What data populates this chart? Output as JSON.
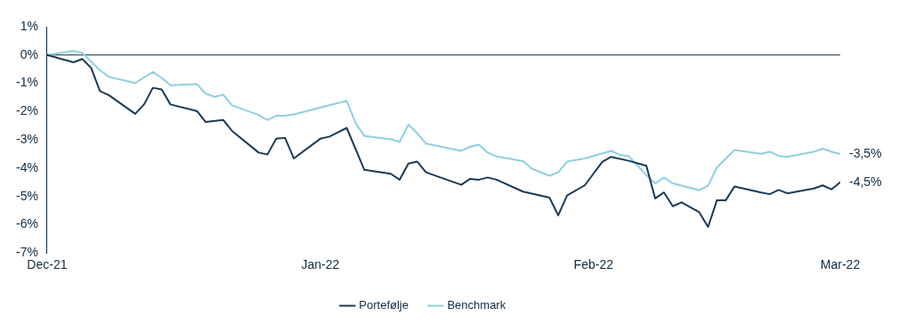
{
  "chart_data": {
    "type": "line",
    "xlim": [
      "2021-12-01",
      "2022-03-01"
    ],
    "xticks": [
      {
        "value": "2021-12-01",
        "label": "Dec-21"
      },
      {
        "value": "2022-01-01",
        "label": "Jan-22"
      },
      {
        "value": "2022-02-01",
        "label": "Feb-22"
      },
      {
        "value": "2022-03-01",
        "label": "Mar-22"
      }
    ],
    "ylim": [
      -7,
      1
    ],
    "yticks": [
      {
        "value": 1,
        "label": "1%"
      },
      {
        "value": 0,
        "label": "0%"
      },
      {
        "value": -1,
        "label": "-1%"
      },
      {
        "value": -2,
        "label": "-2%"
      },
      {
        "value": -3,
        "label": "-3%"
      },
      {
        "value": -4,
        "label": "-4%"
      },
      {
        "value": -5,
        "label": "-5%"
      },
      {
        "value": -6,
        "label": "-6%"
      },
      {
        "value": -7,
        "label": "-7%"
      }
    ],
    "series": [
      {
        "name": "Portefølje",
        "color": "#1b3a55",
        "x": [
          "2021-12-01",
          "2021-12-04",
          "2021-12-05",
          "2021-12-06",
          "2021-12-07",
          "2021-12-08",
          "2021-12-11",
          "2021-12-12",
          "2021-12-13",
          "2021-12-14",
          "2021-12-15",
          "2021-12-18",
          "2021-12-19",
          "2021-12-21",
          "2021-12-22",
          "2021-12-25",
          "2021-12-26",
          "2021-12-27",
          "2021-12-28",
          "2021-12-29",
          "2022-01-01",
          "2022-01-02",
          "2022-01-04",
          "2022-01-06",
          "2022-01-09",
          "2022-01-10",
          "2022-01-11",
          "2022-01-12",
          "2022-01-13",
          "2022-01-17",
          "2022-01-18",
          "2022-01-19",
          "2022-01-20",
          "2022-01-21",
          "2022-01-24",
          "2022-01-27",
          "2022-01-28",
          "2022-01-29",
          "2022-01-31",
          "2022-02-02",
          "2022-02-03",
          "2022-02-05",
          "2022-02-07",
          "2022-02-08",
          "2022-02-09",
          "2022-02-10",
          "2022-02-11",
          "2022-02-13",
          "2022-02-14",
          "2022-02-15",
          "2022-02-16",
          "2022-02-17",
          "2022-02-20",
          "2022-02-21",
          "2022-02-22",
          "2022-02-23",
          "2022-02-26",
          "2022-02-27",
          "2022-02-28",
          "2022-03-01"
        ],
        "values": [
          0,
          -0.26,
          -0.14,
          -0.46,
          -1.28,
          -1.42,
          -2.08,
          -1.75,
          -1.16,
          -1.22,
          -1.75,
          -1.98,
          -2.37,
          -2.3,
          -2.69,
          -3.45,
          -3.52,
          -2.96,
          -2.93,
          -3.66,
          -2.96,
          -2.89,
          -2.58,
          -4.06,
          -4.2,
          -4.41,
          -3.84,
          -3.77,
          -4.15,
          -4.59,
          -4.38,
          -4.41,
          -4.33,
          -4.41,
          -4.83,
          -5.04,
          -5.67,
          -4.97,
          -4.61,
          -3.78,
          -3.6,
          -3.74,
          -3.92,
          -5.07,
          -4.86,
          -5.35,
          -5.21,
          -5.56,
          -6.08,
          -5.14,
          -5.14,
          -4.65,
          -4.86,
          -4.92,
          -4.77,
          -4.89,
          -4.72,
          -4.61,
          -4.75,
          -4.5
        ]
      },
      {
        "name": "Benchmark",
        "color": "#8fcfe0",
        "x": [
          "2021-12-01",
          "2021-12-04",
          "2021-12-05",
          "2021-12-07",
          "2021-12-08",
          "2021-12-11",
          "2021-12-13",
          "2021-12-14",
          "2021-12-15",
          "2021-12-18",
          "2021-12-19",
          "2021-12-20",
          "2021-12-21",
          "2021-12-22",
          "2021-12-25",
          "2021-12-26",
          "2021-12-27",
          "2021-12-28",
          "2021-12-29",
          "2022-01-02",
          "2022-01-04",
          "2022-01-05",
          "2022-01-06",
          "2022-01-09",
          "2022-01-10",
          "2022-01-11",
          "2022-01-12",
          "2022-01-13",
          "2022-01-17",
          "2022-01-18",
          "2022-01-19",
          "2022-01-20",
          "2022-01-21",
          "2022-01-24",
          "2022-01-25",
          "2022-01-27",
          "2022-01-28",
          "2022-01-29",
          "2022-01-31",
          "2022-02-03",
          "2022-02-04",
          "2022-02-05",
          "2022-02-07",
          "2022-02-08",
          "2022-02-09",
          "2022-02-10",
          "2022-02-13",
          "2022-02-14",
          "2022-02-15",
          "2022-02-17",
          "2022-02-20",
          "2022-02-21",
          "2022-02-22",
          "2022-02-23",
          "2022-02-26",
          "2022-02-27",
          "2022-02-28",
          "2022-03-01"
        ],
        "values": [
          0,
          0.14,
          0.07,
          -0.54,
          -0.77,
          -0.99,
          -0.6,
          -0.81,
          -1.07,
          -1.03,
          -1.37,
          -1.48,
          -1.41,
          -1.78,
          -2.12,
          -2.3,
          -2.15,
          -2.15,
          -2.1,
          -1.78,
          -1.62,
          -2.41,
          -2.86,
          -2.98,
          -3.07,
          -2.46,
          -2.77,
          -3.13,
          -3.39,
          -3.24,
          -3.17,
          -3.45,
          -3.59,
          -3.75,
          -4.02,
          -4.27,
          -4.15,
          -3.77,
          -3.66,
          -3.39,
          -3.53,
          -3.58,
          -4.25,
          -4.54,
          -4.34,
          -4.54,
          -4.78,
          -4.62,
          -3.98,
          -3.36,
          -3.49,
          -3.42,
          -3.57,
          -3.6,
          -3.42,
          -3.31,
          -3.42,
          -3.5
        ]
      }
    ],
    "ref_lines": [
      {
        "axis": "y",
        "value": 0,
        "color": "#0f2a40"
      }
    ],
    "annotations": [
      {
        "text": "-3,5%",
        "x": "2022-03-01",
        "y": -3.5
      },
      {
        "text": "-4,5%",
        "x": "2022-03-01",
        "y": -4.5
      }
    ],
    "legend": "bottom",
    "grid": false,
    "marker": "none",
    "line_style": "solid"
  }
}
